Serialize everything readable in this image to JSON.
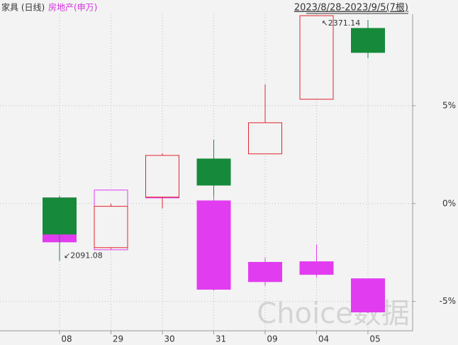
{
  "chart_data": {
    "type": "candlestick",
    "range_label": "2023/8/28-2023/9/5(7根)",
    "watermark": "Choice数据",
    "categories": [
      "08",
      "29",
      "30",
      "31",
      "09",
      "04",
      "05"
    ],
    "series": [
      {
        "name": "家具 (日线)",
        "up_color": "#e0242e",
        "down_color": "#168a3a",
        "label_color": "#333333",
        "open": [
          0.29,
          -2.25,
          0.33,
          2.28,
          2.54,
          5.33,
          8.95
        ],
        "high": [
          0.4,
          0,
          2.57,
          3.26,
          6.09,
          9.6,
          9.38
        ],
        "low": [
          -2.93,
          -2.32,
          -0.25,
          0.4,
          2.54,
          5.33,
          7.43
        ],
        "close": [
          -1.56,
          -0.14,
          2.46,
          0.94,
          4.13,
          9.6,
          7.72
        ]
      },
      {
        "name": "房地产(申万)",
        "up_color": "#e23cf0",
        "down_color": "#e23cf0",
        "label_color": "#d530e0",
        "open": [
          0.29,
          -2.36,
          0.36,
          0.14,
          -3.0,
          -2.97,
          -3.84
        ],
        "high": [
          0.4,
          0.69,
          0.36,
          0.4,
          -2.75,
          -2.1,
          -3.84
        ],
        "low": [
          -1.96,
          -2.36,
          0.29,
          -4.45,
          -4.2,
          -3.77,
          -5.6
        ],
        "close": [
          -1.96,
          0.69,
          0.29,
          -4.38,
          -3.99,
          -3.62,
          -5.54
        ]
      }
    ],
    "annotations": [
      "↖2371.14",
      "↙2091.08"
    ],
    "ylim": [
      -6.5,
      10.4
    ],
    "yticks": [
      {
        "value": -5,
        "label": "-5%"
      },
      {
        "value": 0,
        "label": "0%"
      },
      {
        "value": 5,
        "label": "5%"
      }
    ],
    "grid": true
  }
}
